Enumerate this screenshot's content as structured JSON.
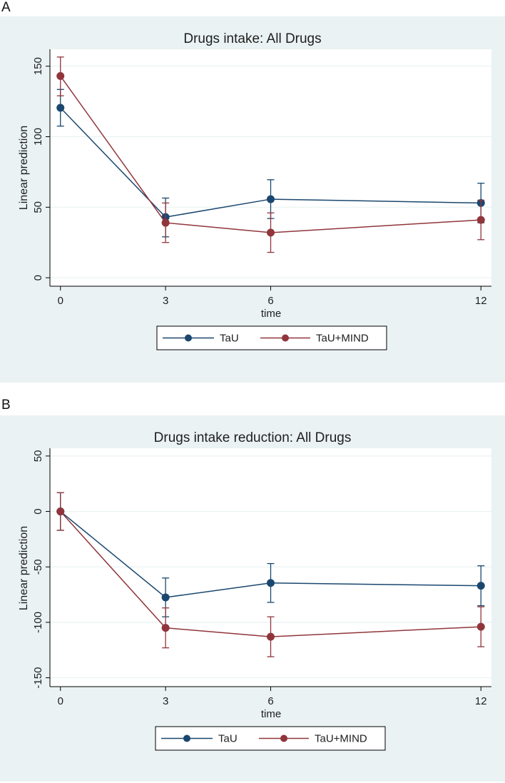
{
  "panels": [
    {
      "letter": "A",
      "chart_data": {
        "type": "line",
        "title": "Drugs intake: All Drugs",
        "xlabel": "time",
        "ylabel": "Linear prediction",
        "x": [
          0,
          3,
          6,
          12
        ],
        "xticks": [
          "0",
          "3",
          "6",
          "12"
        ],
        "yticks": [
          0,
          50,
          100,
          150
        ],
        "xlim": [
          -0.3,
          12.3
        ],
        "ylim": [
          -6,
          162
        ],
        "grid": true,
        "legend_position": "bottom",
        "series": [
          {
            "name": "TaU",
            "color": "#1a476f",
            "values": [
              120.5,
              43.0,
              55.7,
              53.0
            ],
            "ci_low": [
              107.5,
              29.0,
              42.0,
              39.0
            ],
            "ci_high": [
              133.5,
              56.5,
              69.5,
              67.0
            ]
          },
          {
            "name": "TaU+MIND",
            "color": "#90353b",
            "values": [
              143.0,
              39.0,
              32.0,
              41.0
            ],
            "ci_low": [
              129.0,
              25.0,
              18.0,
              27.0
            ],
            "ci_high": [
              156.5,
              53.0,
              46.0,
              55.0
            ]
          }
        ]
      }
    },
    {
      "letter": "B",
      "chart_data": {
        "type": "line",
        "title": "Drugs intake reduction: All Drugs",
        "xlabel": "time",
        "ylabel": "Linear prediction",
        "x": [
          0,
          3,
          6,
          12
        ],
        "xticks": [
          "0",
          "3",
          "6",
          "12"
        ],
        "yticks": [
          -150,
          -100,
          -50,
          0,
          50
        ],
        "xlim": [
          -0.3,
          12.3
        ],
        "ylim": [
          -158,
          57
        ],
        "grid": true,
        "legend_position": "bottom",
        "series": [
          {
            "name": "TaU",
            "color": "#1a476f",
            "values": [
              0,
              -77.5,
              -64.5,
              -67.0
            ],
            "ci_low": [
              -17.0,
              -95.0,
              -82.0,
              -85.0
            ],
            "ci_high": [
              17.0,
              -60.0,
              -47.0,
              -49.0
            ]
          },
          {
            "name": "TaU+MIND",
            "color": "#90353b",
            "values": [
              0,
              -105.0,
              -113.0,
              -104.0
            ],
            "ci_low": [
              -17.0,
              -123.0,
              -131.0,
              -122.0
            ],
            "ci_high": [
              17.0,
              -87.0,
              -95.0,
              -86.0
            ]
          }
        ]
      }
    }
  ]
}
